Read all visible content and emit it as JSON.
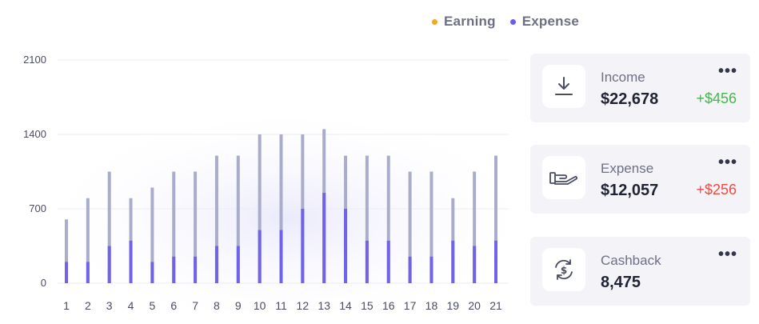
{
  "legend": [
    {
      "label": "Earning",
      "color": "#f5a623"
    },
    {
      "label": "Expense",
      "color": "#6b5cf0"
    }
  ],
  "chart_data": {
    "type": "bar",
    "categories": [
      "1",
      "2",
      "3",
      "4",
      "5",
      "6",
      "7",
      "8",
      "9",
      "10",
      "11",
      "12",
      "13",
      "14",
      "15",
      "16",
      "17",
      "18",
      "19",
      "20",
      "21"
    ],
    "series": [
      {
        "name": "Earning",
        "values": [
          600,
          800,
          1050,
          800,
          900,
          1050,
          1050,
          1200,
          1200,
          1400,
          1400,
          1400,
          1450,
          1200,
          1200,
          1200,
          1050,
          1050,
          800,
          1050,
          1200
        ]
      },
      {
        "name": "Expense",
        "values": [
          200,
          200,
          350,
          400,
          200,
          250,
          250,
          350,
          350,
          500,
          500,
          700,
          850,
          700,
          400,
          400,
          250,
          250,
          400,
          350,
          400
        ]
      }
    ],
    "y_ticks": [
      "2100",
      "1400",
      "700",
      "0"
    ],
    "ylim": [
      0,
      2100
    ],
    "grid": true,
    "bar_colors": {
      "Earning": "#aaaccb",
      "Expense": "#7062ea"
    }
  },
  "cards": [
    {
      "label": "Income",
      "value": "$22,678",
      "change": "+$456",
      "change_type": "positive",
      "icon": "download-icon",
      "more": "•••"
    },
    {
      "label": "Expense",
      "value": "$12,057",
      "change": "+$256",
      "change_type": "negative",
      "icon": "hand-giving-icon",
      "more": "•••"
    },
    {
      "label": "Cashback",
      "value": "8,475",
      "change": "",
      "change_type": "none",
      "icon": "cashback-icon",
      "more": "•••"
    }
  ]
}
